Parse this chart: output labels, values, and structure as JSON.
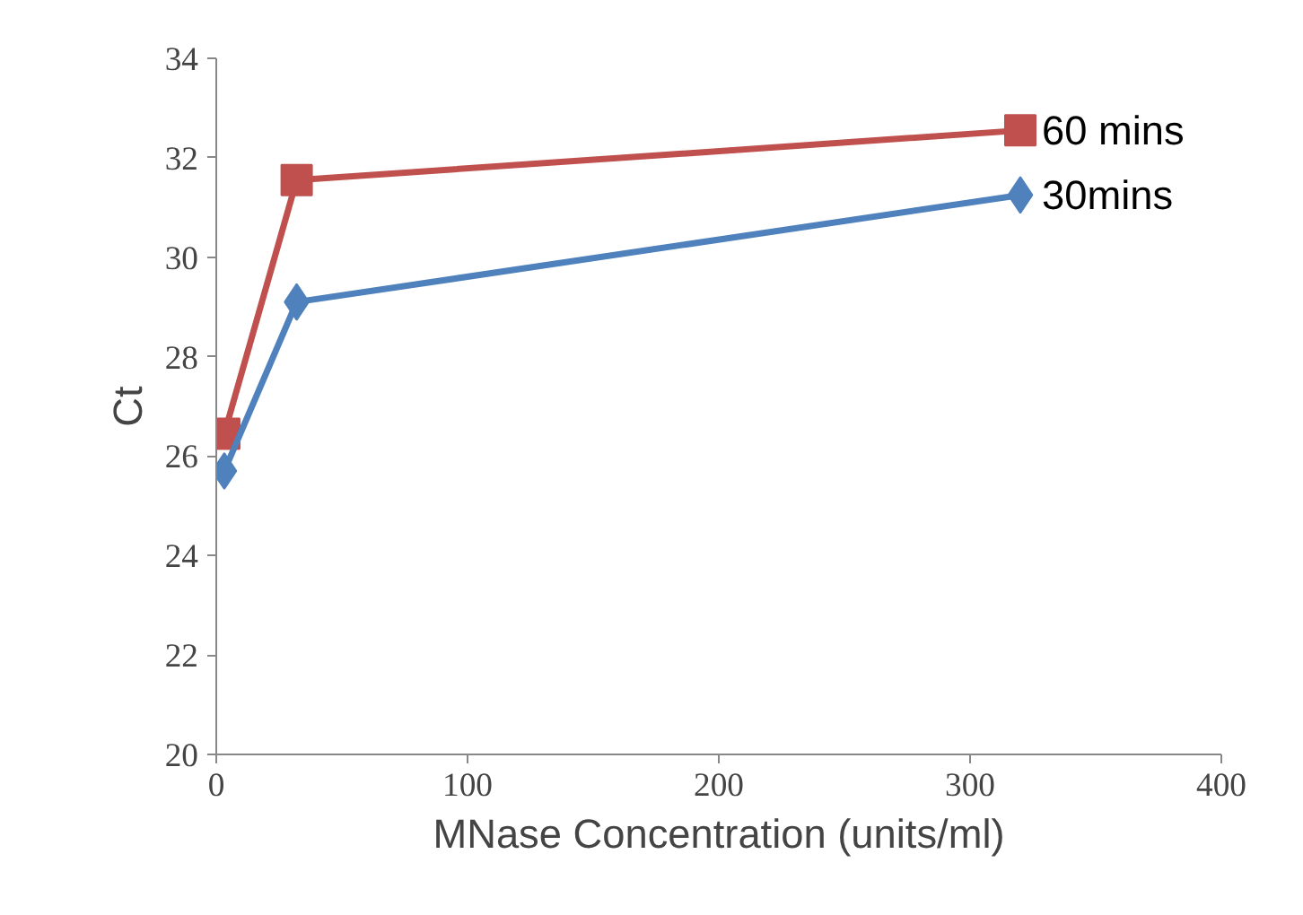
{
  "chart_data": {
    "type": "line",
    "xlabel": "MNase Concentration (units/ml)",
    "ylabel": "Ct",
    "x": [
      3.2,
      32,
      320
    ],
    "series": [
      {
        "name": "60 mins",
        "color": "#c0504d",
        "marker": "square",
        "values": [
          26.45,
          31.55,
          32.55
        ]
      },
      {
        "name": "30mins",
        "color": "#4f81bd",
        "marker": "diamond",
        "values": [
          25.7,
          29.1,
          31.25
        ]
      }
    ],
    "xlim": [
      0,
      400
    ],
    "xticks": [
      0,
      100,
      200,
      300,
      400
    ],
    "ylim": [
      20,
      34
    ],
    "yticks": [
      20,
      22,
      24,
      26,
      28,
      30,
      32,
      34
    ],
    "grid": false
  }
}
